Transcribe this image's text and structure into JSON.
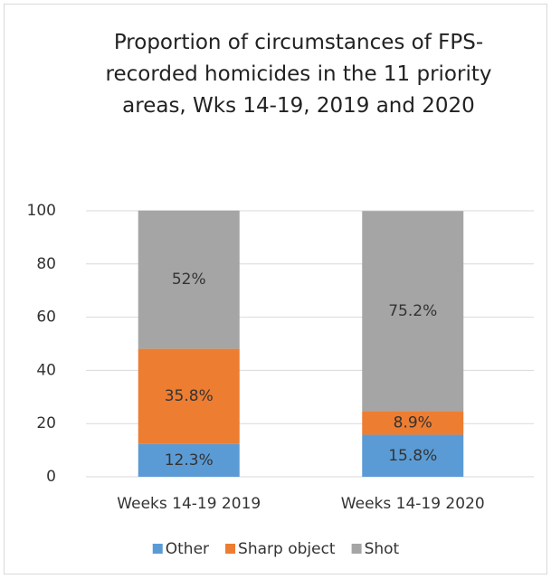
{
  "chart_data": {
    "type": "stacked_bar",
    "title": "Proportion of circumstances of FPS-recorded homicides in the 11 priority areas, Wks 14-19, 2019 and 2020",
    "categories": [
      "Weeks 14-19 2019",
      "Weeks 14-19 2020"
    ],
    "series": [
      {
        "name": "Other",
        "color": "#5b9bd5",
        "values": [
          12.3,
          15.8
        ],
        "value_labels": [
          "12.3%",
          "15.8%"
        ]
      },
      {
        "name": "Sharp object",
        "color": "#ed7d31",
        "values": [
          35.8,
          8.9
        ],
        "value_labels": [
          "35.8%",
          "8.9%"
        ]
      },
      {
        "name": "Shot",
        "color": "#a5a5a5",
        "values": [
          52,
          75.2
        ],
        "value_labels": [
          "52%",
          "75.2%"
        ]
      }
    ],
    "ylim": [
      0,
      100
    ],
    "yticks": [
      0,
      20,
      40,
      60,
      80,
      100
    ],
    "grid": true,
    "legend": "bottom"
  }
}
